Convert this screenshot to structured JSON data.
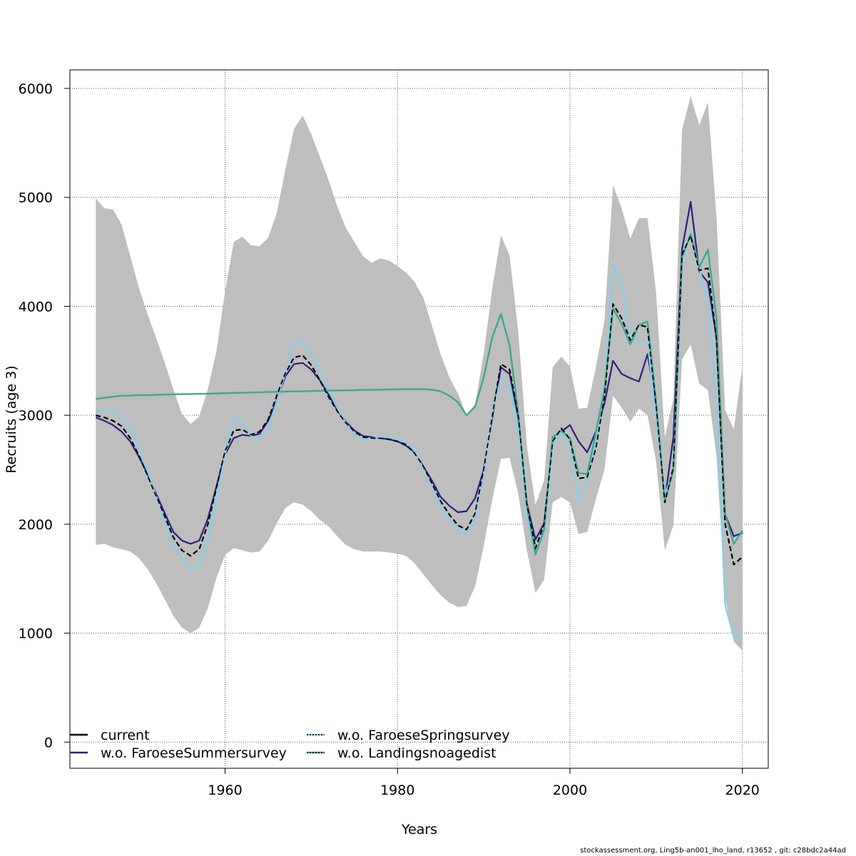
{
  "chart_data": {
    "type": "line",
    "title": "",
    "xlabel": "Years",
    "ylabel": "Recruits (age 3)",
    "xlim": [
      1942,
      2023
    ],
    "ylim": [
      -240,
      6170
    ],
    "x_ticks": [
      1960,
      1980,
      2000,
      2020
    ],
    "y_ticks": [
      0,
      1000,
      2000,
      3000,
      4000,
      5000,
      6000
    ],
    "grid": true,
    "legend_position": "bottom-left",
    "colors": {
      "band": "#bebebe",
      "current": "#000000",
      "summer": "#2e1f7a",
      "spring": "#87ceeb",
      "landings": "#40a890"
    },
    "x": [
      1945,
      1946,
      1947,
      1948,
      1949,
      1950,
      1951,
      1952,
      1953,
      1954,
      1955,
      1956,
      1957,
      1958,
      1959,
      1960,
      1961,
      1962,
      1963,
      1964,
      1965,
      1966,
      1967,
      1968,
      1969,
      1970,
      1971,
      1972,
      1973,
      1974,
      1975,
      1976,
      1977,
      1978,
      1979,
      1980,
      1981,
      1982,
      1983,
      1984,
      1985,
      1986,
      1987,
      1988,
      1989,
      1990,
      1991,
      1992,
      1993,
      1994,
      1995,
      1996,
      1997,
      1998,
      1999,
      2000,
      2001,
      2002,
      2003,
      2004,
      2005,
      2006,
      2007,
      2008,
      2009,
      2010,
      2011,
      2012,
      2013,
      2014,
      2015,
      2016,
      2017,
      2018,
      2019,
      2020
    ],
    "band_upper": [
      4990,
      4900,
      4890,
      4750,
      4460,
      4170,
      3930,
      3710,
      3480,
      3240,
      3010,
      2920,
      2990,
      3240,
      3590,
      4140,
      4590,
      4640,
      4560,
      4550,
      4630,
      4860,
      5260,
      5630,
      5750,
      5580,
      5370,
      5160,
      4920,
      4720,
      4590,
      4460,
      4400,
      4440,
      4420,
      4370,
      4310,
      4220,
      4080,
      3820,
      3560,
      3350,
      3200,
      3000,
      3100,
      3570,
      4170,
      4650,
      4470,
      3770,
      2720,
      2180,
      2400,
      3440,
      3540,
      3450,
      3060,
      3070,
      3440,
      3870,
      5110,
      4900,
      4620,
      4810,
      4810,
      4120,
      2800,
      3150,
      5620,
      5930,
      5660,
      5870,
      4810,
      3050,
      2870,
      3450
    ],
    "band_lower": [
      1810,
      1820,
      1790,
      1770,
      1750,
      1690,
      1590,
      1460,
      1310,
      1160,
      1050,
      1000,
      1050,
      1230,
      1510,
      1720,
      1780,
      1760,
      1740,
      1750,
      1850,
      2010,
      2150,
      2200,
      2180,
      2120,
      2040,
      1980,
      1890,
      1810,
      1770,
      1750,
      1750,
      1750,
      1740,
      1730,
      1710,
      1640,
      1540,
      1440,
      1350,
      1280,
      1240,
      1250,
      1430,
      1800,
      2230,
      2600,
      2610,
      2280,
      1760,
      1370,
      1490,
      2200,
      2250,
      2200,
      1910,
      1930,
      2230,
      2500,
      3180,
      3070,
      2940,
      3060,
      3000,
      2570,
      1760,
      1990,
      3510,
      3650,
      3290,
      3230,
      2620,
      1330,
      920,
      840
    ],
    "series": [
      {
        "name": "current",
        "values": [
          3000,
          2980,
          2950,
          2900,
          2790,
          2630,
          2450,
          2260,
          2070,
          1880,
          1760,
          1710,
          1770,
          2000,
          2340,
          2670,
          2860,
          2870,
          2820,
          2850,
          2960,
          3180,
          3390,
          3530,
          3550,
          3460,
          3320,
          3170,
          3040,
          2930,
          2850,
          2800,
          2790,
          2790,
          2780,
          2760,
          2730,
          2650,
          2530,
          2370,
          2210,
          2090,
          1990,
          1950,
          2100,
          2500,
          3000,
          3470,
          3420,
          3000,
          2180,
          1780,
          2000,
          2760,
          2880,
          2780,
          2420,
          2430,
          2700,
          3180,
          4020,
          3890,
          3690,
          3830,
          3810,
          3080,
          2200,
          2520,
          4470,
          4650,
          4330,
          4350,
          3690,
          2000,
          1630,
          1700
        ]
      },
      {
        "name": "w.o. FaroeseSummersurvey",
        "values": [
          2980,
          2950,
          2910,
          2850,
          2760,
          2620,
          2460,
          2280,
          2100,
          1930,
          1850,
          1820,
          1850,
          2050,
          2350,
          2640,
          2790,
          2820,
          2810,
          2830,
          2950,
          3140,
          3360,
          3470,
          3480,
          3420,
          3320,
          3190,
          3050,
          2940,
          2860,
          2810,
          2800,
          2790,
          2780,
          2760,
          2720,
          2660,
          2530,
          2400,
          2250,
          2170,
          2110,
          2120,
          2240,
          2500,
          2980,
          3440,
          3380,
          2980,
          2190,
          1860,
          2010,
          2740,
          2850,
          2910,
          2760,
          2660,
          2850,
          3110,
          3500,
          3380,
          3340,
          3310,
          3560,
          3100,
          2220,
          2800,
          4520,
          4960,
          4320,
          4220,
          3710,
          2090,
          1890,
          1920
        ]
      },
      {
        "name": "w.o. FaroeseSpringsurvey",
        "values": [
          3040,
          3050,
          3030,
          2980,
          2870,
          2690,
          2490,
          2260,
          2030,
          1820,
          1680,
          1580,
          1620,
          1860,
          2240,
          2640,
          2980,
          2940,
          2810,
          2780,
          2880,
          3130,
          3390,
          3650,
          3690,
          3580,
          3400,
          3230,
          3070,
          2930,
          2830,
          2780,
          2790,
          2800,
          2800,
          2780,
          2760,
          2670,
          2510,
          2350,
          2180,
          2050,
          1940,
          1900,
          2050,
          2470,
          3020,
          3340,
          3270,
          2880,
          2070,
          1740,
          1900,
          2740,
          2850,
          2720,
          2220,
          2400,
          2760,
          3230,
          4380,
          4220,
          3720,
          3670,
          3680,
          2950,
          2280,
          2470,
          4400,
          4700,
          4350,
          4060,
          3100,
          1260,
          960,
          1010
        ]
      },
      {
        "name": "w.o. Landingsnoagedist",
        "values": [
          3150,
          3160,
          3170,
          3180,
          3180,
          3185,
          3185,
          3187,
          3190,
          3192,
          3194,
          3195,
          3197,
          3198,
          3200,
          3203,
          3205,
          3207,
          3209,
          3211,
          3213,
          3215,
          3217,
          3219,
          3220,
          3222,
          3224,
          3226,
          3228,
          3229,
          3231,
          3233,
          3234,
          3235,
          3237,
          3238,
          3240,
          3240,
          3240,
          3235,
          3220,
          3180,
          3120,
          3000,
          3080,
          3350,
          3720,
          3930,
          3640,
          3020,
          2170,
          1720,
          1950,
          2800,
          2860,
          2790,
          2470,
          2460,
          2840,
          3240,
          3980,
          3840,
          3650,
          3830,
          3860,
          3120,
          2210,
          2500,
          4450,
          4660,
          4360,
          4520,
          3890,
          2090,
          1820,
          1940
        ]
      }
    ],
    "legend": [
      {
        "label": "current",
        "key": "current"
      },
      {
        "label": "w.o. FaroeseSummersurvey",
        "key": "summer"
      },
      {
        "label": "w.o. FaroeseSpringsurvey",
        "key": "spring"
      },
      {
        "label": "w.o. Landingsnoagedist",
        "key": "landings"
      }
    ]
  },
  "footer": "stockassessment.org, Ling5b-an001_lho_land, r13652 , git: c28bdc2a44ad"
}
